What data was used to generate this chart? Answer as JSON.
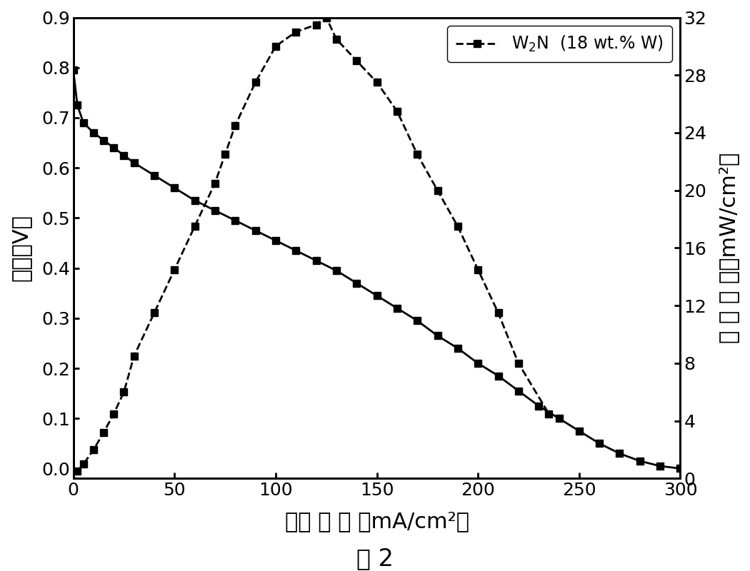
{
  "xlabel": "电流 密 度 （mA/cm²）",
  "ylabel_left": "电压（V）",
  "ylabel_right": "功 率 密 度（mW/cm²）",
  "caption": "图 2",
  "xlim": [
    0,
    300
  ],
  "ylim_left": [
    -0.02,
    0.9
  ],
  "ylim_right": [
    0,
    32
  ],
  "xticks": [
    0,
    50,
    100,
    150,
    200,
    250,
    300
  ],
  "yticks_left": [
    0.0,
    0.1,
    0.2,
    0.3,
    0.4,
    0.5,
    0.6,
    0.7,
    0.8,
    0.9
  ],
  "yticks_right": [
    0,
    4,
    8,
    12,
    16,
    20,
    24,
    28,
    32
  ],
  "polarization_x": [
    0,
    2,
    5,
    10,
    15,
    20,
    25,
    30,
    40,
    50,
    60,
    70,
    80,
    90,
    100,
    110,
    120,
    130,
    140,
    150,
    160,
    170,
    180,
    190,
    200,
    210,
    220,
    230,
    240,
    250,
    260,
    270,
    280,
    290,
    300
  ],
  "polarization_y": [
    0.795,
    0.725,
    0.69,
    0.67,
    0.655,
    0.64,
    0.625,
    0.61,
    0.585,
    0.56,
    0.535,
    0.515,
    0.495,
    0.475,
    0.455,
    0.435,
    0.415,
    0.395,
    0.37,
    0.345,
    0.32,
    0.295,
    0.265,
    0.24,
    0.21,
    0.185,
    0.155,
    0.125,
    0.1,
    0.075,
    0.05,
    0.03,
    0.015,
    0.005,
    0.0
  ],
  "power_x": [
    2,
    5,
    10,
    15,
    20,
    25,
    30,
    40,
    50,
    60,
    70,
    75,
    80,
    90,
    100,
    110,
    120,
    125,
    130,
    140,
    150,
    160,
    170,
    180,
    190,
    200,
    210,
    220,
    235
  ],
  "power_y_mw": [
    0.5,
    1.0,
    2.0,
    3.2,
    4.5,
    6.0,
    8.5,
    11.5,
    14.5,
    17.5,
    20.5,
    22.5,
    24.5,
    27.5,
    30.0,
    31.0,
    31.5,
    32.0,
    30.5,
    29.0,
    27.5,
    25.5,
    22.5,
    20.0,
    17.5,
    14.5,
    11.5,
    8.0,
    4.5
  ],
  "line_color": "#000000",
  "marker_style": "s",
  "marker_size": 7,
  "line_width": 2.0,
  "background_color": "#ffffff"
}
